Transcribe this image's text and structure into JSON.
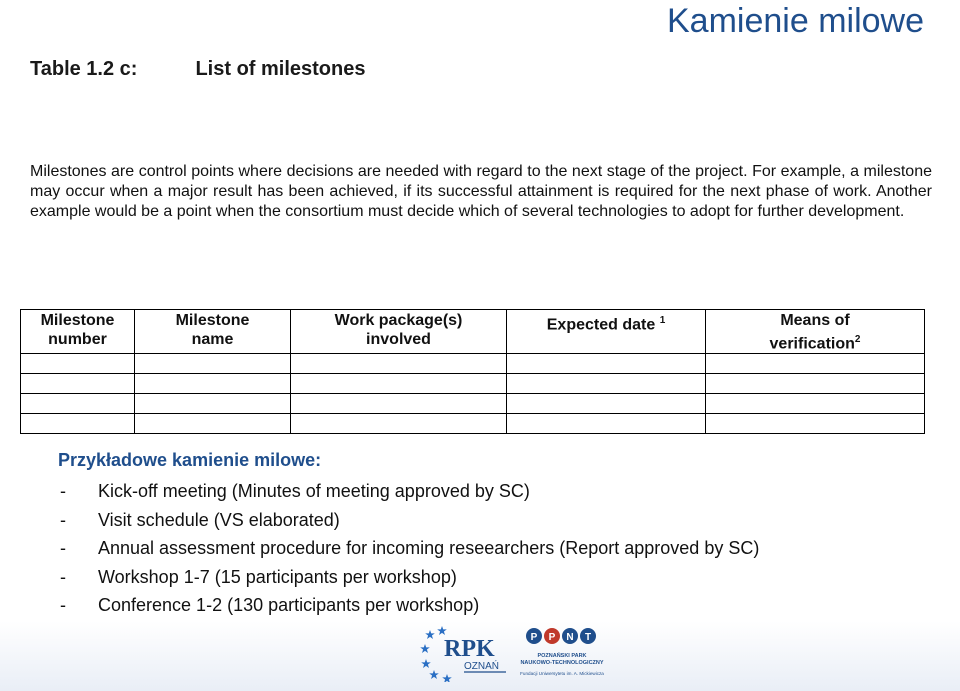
{
  "slide": {
    "title": "Kamienie milowe"
  },
  "table_caption": {
    "label": "Table 1.2 c:",
    "name": "List of milestones"
  },
  "intro_text": "Milestones are control points where decisions are needed with regard to the next stage of the project. For example, a milestone may occur when a major result has been achieved, if its successful attainment is required for the next phase of work. Another example would be a point when the consortium must decide which of several technologies to adopt for further development.",
  "table": {
    "headers": [
      {
        "line1": "Milestone",
        "line2": "number",
        "sup": ""
      },
      {
        "line1": "Milestone",
        "line2": "name",
        "sup": ""
      },
      {
        "line1": "Work package(s)",
        "line2": "involved",
        "sup": ""
      },
      {
        "line1": "Expected date",
        "line2": "",
        "sup": "1"
      },
      {
        "line1": "Means of",
        "line2": "verification",
        "sup": "2"
      }
    ],
    "empty_rows": 4
  },
  "examples": {
    "heading": "Przykładowe kamienie milowe:",
    "dash": "-",
    "items": [
      "Kick-off meeting (Minutes of meeting approved by SC)",
      "Visit schedule  (VS elaborated)",
      "Annual assessment procedure for incoming reseearchers (Report approved by SC)",
      "Workshop 1-7 (15 participants per workshop)",
      "Conference 1-2 (130 participants per workshop)"
    ]
  },
  "footer": {
    "logo1": {
      "text": "RPK",
      "sub": "OZNAŃ"
    },
    "logo2": {
      "letters": [
        "P",
        "P",
        "N",
        "T"
      ],
      "line1": "POZNAŃSKI PARK",
      "line2": "NAUKOWO-TECHNOLOGICZNY",
      "line3": "Fundacji Uniwersytetu im. A. Mickiewicza"
    },
    "colors": {
      "blue": "#1f4e8c",
      "star": "#2a6fc4",
      "ppnt_red": "#c0392b"
    }
  }
}
